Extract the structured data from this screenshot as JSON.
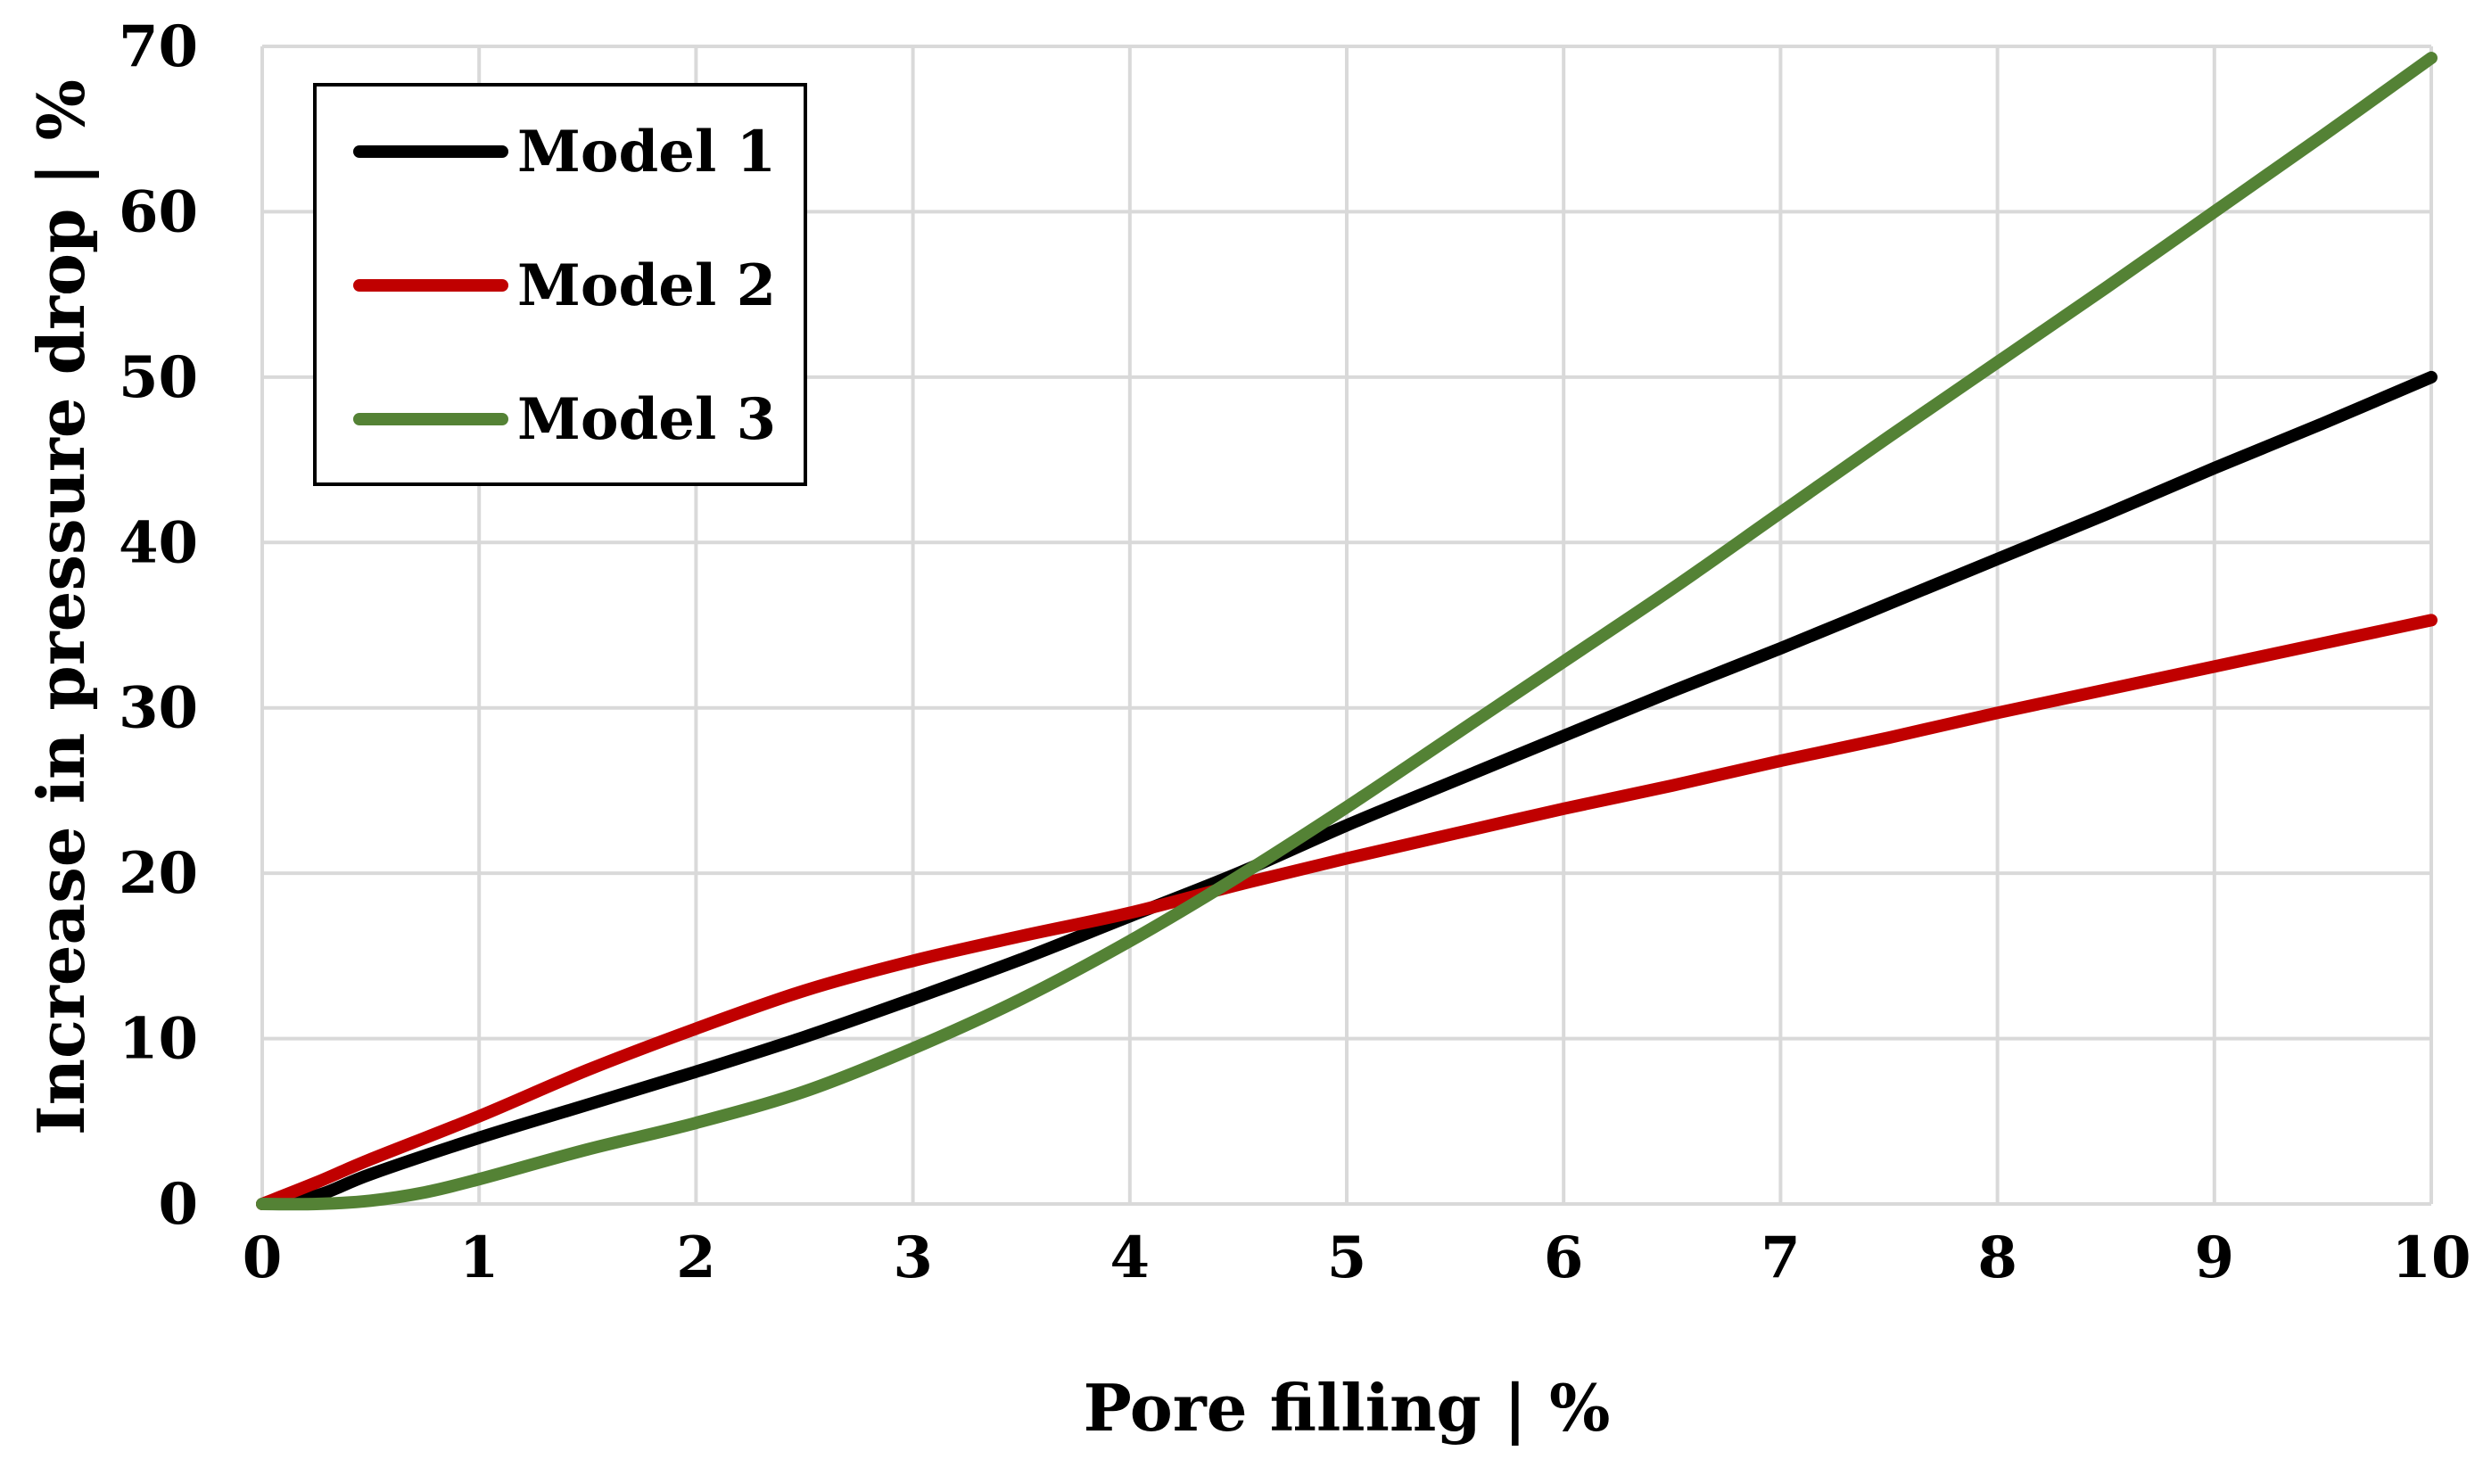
{
  "chart_data": {
    "type": "line",
    "title": "",
    "xlabel": "Pore filling | %",
    "ylabel": "Increase in pressure drop | %",
    "xlim": [
      0,
      10
    ],
    "ylim": [
      0,
      70
    ],
    "xticks": [
      0,
      1,
      2,
      3,
      4,
      5,
      6,
      7,
      8,
      9,
      10
    ],
    "yticks": [
      0,
      10,
      20,
      30,
      40,
      50,
      60,
      70
    ],
    "grid": true,
    "legend_position": "top-left",
    "series": [
      {
        "name": "Model 1",
        "color": "#000000",
        "x": [
          0,
          0.25,
          0.5,
          1,
          1.5,
          2,
          2.5,
          3,
          3.5,
          4,
          4.5,
          5,
          5.5,
          6,
          6.5,
          7,
          7.5,
          8,
          8.5,
          9,
          9.5,
          10
        ],
        "y": [
          0,
          0.5,
          1.8,
          4.0,
          6.0,
          8.0,
          10.1,
          12.4,
          14.8,
          17.4,
          20.0,
          22.9,
          25.6,
          28.3,
          31.0,
          33.6,
          36.3,
          39.0,
          41.7,
          44.5,
          47.2,
          50.0
        ]
      },
      {
        "name": "Model 2",
        "color": "#c00000",
        "x": [
          0,
          0.25,
          0.5,
          1,
          1.5,
          2,
          2.5,
          3,
          3.5,
          4,
          4.5,
          5,
          5.5,
          6,
          6.5,
          7,
          7.5,
          8,
          8.5,
          9,
          9.5,
          10
        ],
        "y": [
          0,
          1.3,
          2.7,
          5.3,
          8.1,
          10.6,
          12.9,
          14.7,
          16.2,
          17.6,
          19.3,
          20.9,
          22.4,
          23.9,
          25.3,
          26.8,
          28.2,
          29.7,
          31.1,
          32.5,
          33.9,
          35.3
        ]
      },
      {
        "name": "Model 3",
        "color": "#548235",
        "x": [
          0,
          0.25,
          0.5,
          0.75,
          1,
          1.5,
          2,
          2.5,
          3,
          3.5,
          4,
          4.5,
          5,
          5.5,
          6,
          6.5,
          7,
          7.5,
          8,
          8.5,
          9,
          9.5,
          10
        ],
        "y": [
          0,
          0.0,
          0.2,
          0.7,
          1.5,
          3.3,
          4.9,
          6.8,
          9.4,
          12.4,
          15.9,
          19.8,
          24.0,
          28.4,
          32.8,
          37.2,
          41.8,
          46.4,
          50.9,
          55.4,
          60.0,
          64.6,
          69.3
        ]
      }
    ]
  }
}
